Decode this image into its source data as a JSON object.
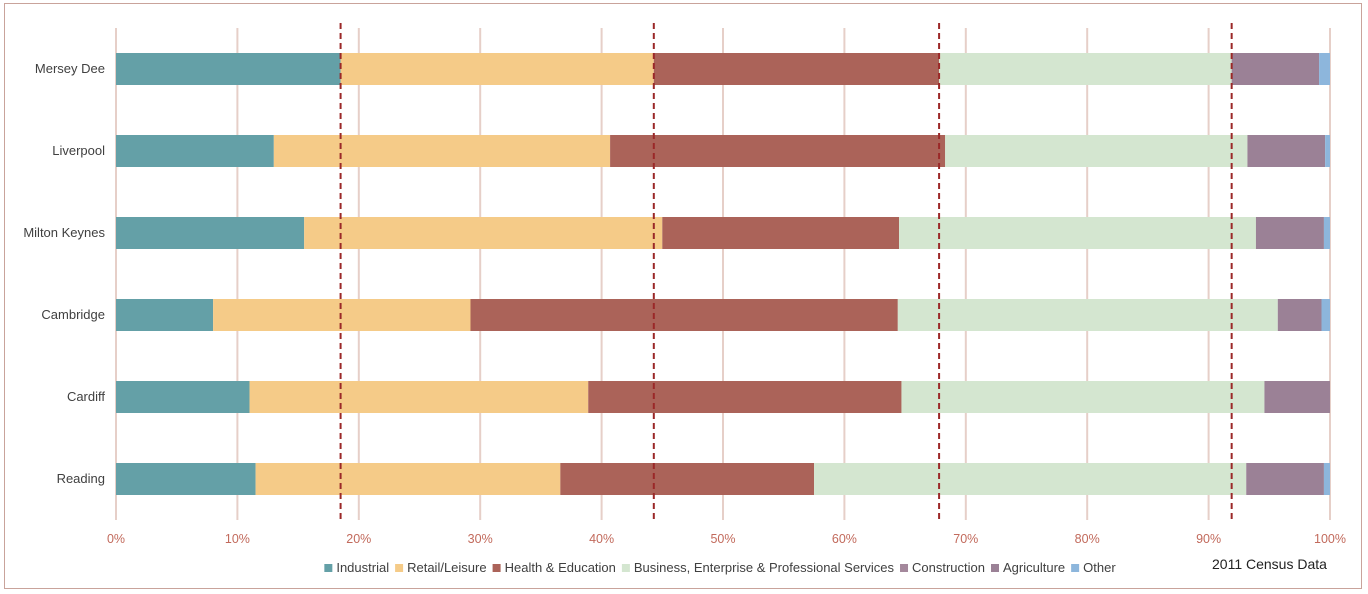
{
  "chart_data": {
    "type": "bar",
    "orientation": "horizontal",
    "stacked": "percent",
    "categories": [
      "Mersey Dee",
      "Liverpool",
      "Milton Keynes",
      "Cambridge",
      "Cardiff",
      "Reading"
    ],
    "series": [
      {
        "name": "Industrial",
        "color": "#64a0a7",
        "values": [
          18.5,
          13.0,
          15.5,
          8.0,
          11.0,
          11.5
        ]
      },
      {
        "name": "Retail/Leisure",
        "color": "#f5cb88",
        "values": [
          25.8,
          27.7,
          29.5,
          21.2,
          27.9,
          25.1
        ]
      },
      {
        "name": "Health & Education",
        "color": "#ab6359",
        "values": [
          23.5,
          27.6,
          19.5,
          35.2,
          25.8,
          20.9
        ]
      },
      {
        "name": "Business, Enterprise & Professional Services",
        "color": "#d4e6d0",
        "values": [
          24.1,
          24.9,
          29.4,
          31.3,
          29.9,
          35.6
        ]
      },
      {
        "name": "Construction",
        "color": "#a4889c",
        "values": [
          0,
          0,
          0,
          0,
          0,
          0
        ]
      },
      {
        "name": "Agriculture",
        "color": "#9b8196",
        "values": [
          7.2,
          6.4,
          5.6,
          3.6,
          5.4,
          6.4
        ]
      },
      {
        "name": "Other",
        "color": "#8db6dc",
        "values": [
          0.9,
          0.4,
          0.5,
          0.7,
          0.0,
          0.5
        ]
      }
    ],
    "reference_lines": [
      18.5,
      44.3,
      67.8,
      91.9
    ],
    "reference_line_color": "#9b2828",
    "xlim": [
      0,
      100
    ],
    "x_ticks": [
      "0%",
      "10%",
      "20%",
      "30%",
      "40%",
      "50%",
      "60%",
      "70%",
      "80%",
      "90%",
      "100%"
    ],
    "grid": true,
    "grid_color": "#e6cfc8",
    "legend_position": "bottom",
    "xlabel": "",
    "ylabel": "",
    "title": ""
  },
  "source_note": "2011 Census Data"
}
